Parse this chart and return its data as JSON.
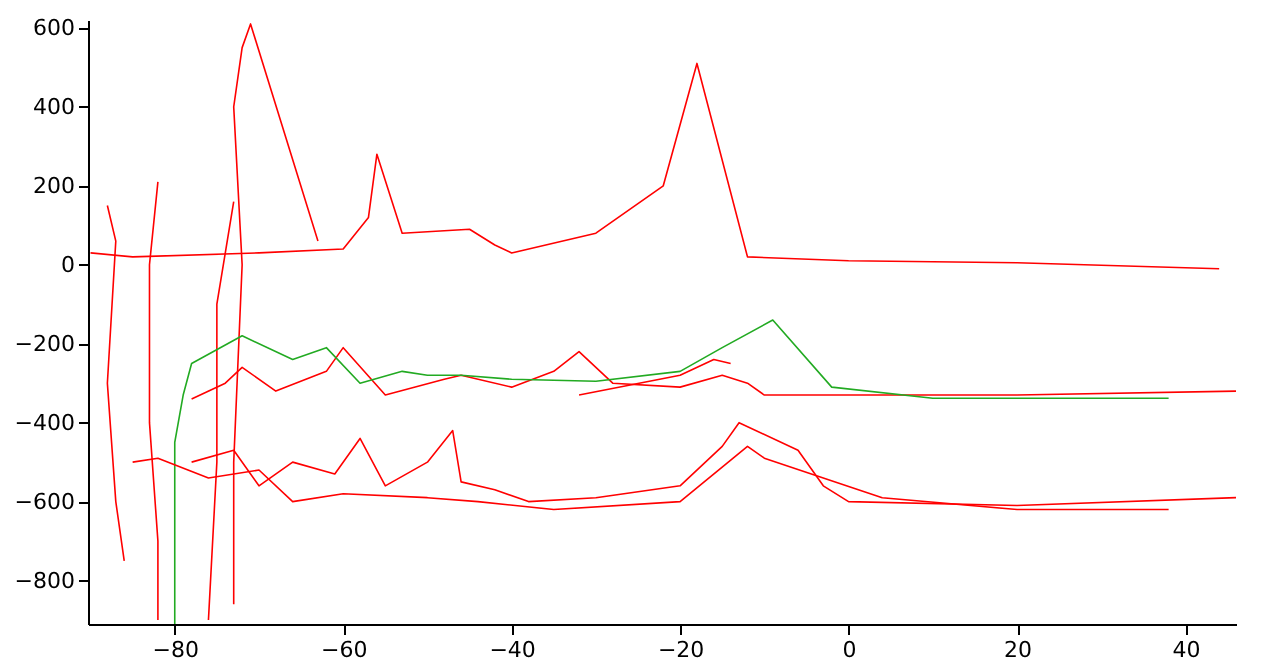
{
  "chart_data": {
    "type": "line",
    "xlim": [
      -90.3,
      46
    ],
    "ylim": [
      -910,
      620
    ],
    "xticks": [
      -80,
      -60,
      -40,
      -20,
      0,
      20,
      40
    ],
    "yticks": [
      -800,
      -600,
      -400,
      -200,
      0,
      200,
      400,
      600
    ],
    "grid": false,
    "legend": false,
    "marker": "none",
    "line_style": "solid",
    "series": [
      {
        "color": "#ff0000",
        "x": [
          -90,
          -85,
          -70,
          -60,
          -57,
          -56,
          -53,
          -45,
          -42,
          -40,
          -30,
          -22,
          -18,
          -12,
          0,
          20,
          44
        ],
        "values": [
          30,
          20,
          30,
          40,
          120,
          280,
          80,
          90,
          50,
          30,
          80,
          200,
          510,
          20,
          10,
          5,
          -10
        ]
      },
      {
        "color": "#ff0000",
        "x": [
          -88,
          -87,
          -88,
          -87,
          -86
        ],
        "values": [
          150,
          60,
          -300,
          -600,
          -750
        ]
      },
      {
        "color": "#ff0000",
        "x": [
          -82,
          -83,
          -83,
          -82,
          -82
        ],
        "values": [
          210,
          0,
          -400,
          -700,
          -900
        ]
      },
      {
        "color": "#ff0000",
        "x": [
          -73,
          -75,
          -75,
          -76
        ],
        "values": [
          160,
          -100,
          -500,
          -900
        ]
      },
      {
        "color": "#ff0000",
        "x": [
          -73,
          -73,
          -72,
          -73,
          -72,
          -71,
          -63
        ],
        "values": [
          -860,
          -500,
          0,
          400,
          550,
          610,
          60
        ]
      },
      {
        "color": "#ff0000",
        "x": [
          -78,
          -74,
          -72,
          -68,
          -62,
          -60,
          -55,
          -48,
          -46,
          -40,
          -35,
          -32,
          -28,
          -20,
          -15,
          -12,
          -10,
          0,
          20,
          46
        ],
        "values": [
          -340,
          -300,
          -260,
          -320,
          -270,
          -210,
          -330,
          -290,
          -280,
          -310,
          -270,
          -220,
          -300,
          -310,
          -280,
          -300,
          -330,
          -330,
          -330,
          -320
        ]
      },
      {
        "color": "#ff0000",
        "x": [
          -32,
          -20,
          -16,
          -14
        ],
        "values": [
          -330,
          -280,
          -240,
          -250
        ]
      },
      {
        "color": "#22aa22",
        "x": [
          -80,
          -80,
          -80,
          -79,
          -78,
          -72,
          -66,
          -62,
          -58,
          -53,
          -50,
          -46,
          -40,
          -30,
          -20,
          -15,
          -9,
          -2,
          10,
          38
        ],
        "values": [
          -910,
          -650,
          -450,
          -330,
          -250,
          -180,
          -240,
          -210,
          -300,
          -270,
          -280,
          -280,
          -290,
          -295,
          -270,
          -210,
          -140,
          -310,
          -338,
          -338
        ]
      },
      {
        "color": "#ff0000",
        "x": [
          -78,
          -73,
          -70,
          -66,
          -61,
          -58,
          -55,
          -50,
          -47,
          -46,
          -42,
          -38,
          -30,
          -20,
          -15,
          -13,
          -6,
          -3,
          0,
          20,
          46
        ],
        "values": [
          -500,
          -470,
          -560,
          -500,
          -530,
          -440,
          -560,
          -500,
          -420,
          -550,
          -570,
          -600,
          -590,
          -560,
          -460,
          -400,
          -470,
          -560,
          -600,
          -610,
          -590
        ]
      },
      {
        "color": "#ff0000",
        "x": [
          -85,
          -82,
          -76,
          -70,
          -66,
          -60,
          -50,
          -44,
          -35,
          -20,
          -12,
          -10,
          4,
          20,
          38
        ],
        "values": [
          -500,
          -490,
          -540,
          -520,
          -600,
          -580,
          -590,
          -600,
          -620,
          -600,
          -460,
          -490,
          -590,
          -620,
          -620
        ]
      }
    ]
  }
}
